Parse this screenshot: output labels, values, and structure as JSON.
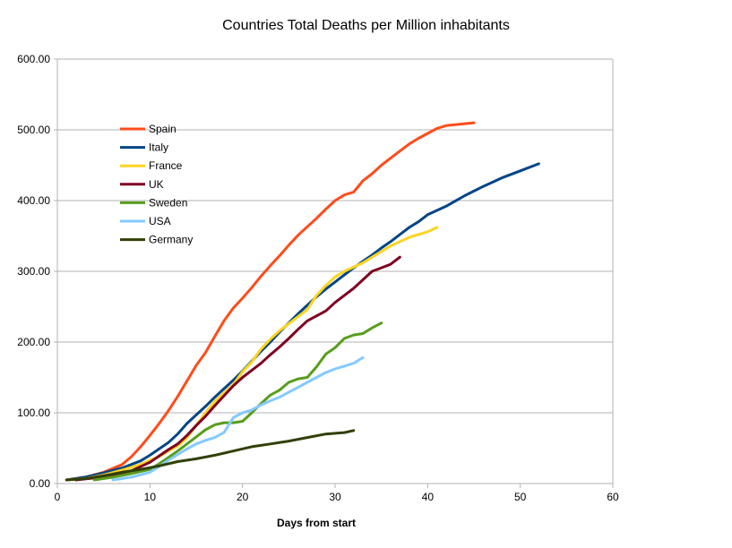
{
  "chart_data": {
    "type": "line",
    "title": "Countries Total Deaths per Million inhabitants",
    "xlabel": "Days from start",
    "ylabel": "",
    "xlim": [
      0,
      60
    ],
    "ylim": [
      0,
      600
    ],
    "x_ticks": [
      "0",
      "10",
      "20",
      "30",
      "40",
      "50",
      "60"
    ],
    "y_ticks": [
      "0.00",
      "100.00",
      "200.00",
      "300.00",
      "400.00",
      "500.00",
      "600.00"
    ],
    "grid": "horizontal",
    "legend_position": "upper-left inside",
    "series": [
      {
        "name": "Spain",
        "color": "#ff4c1a",
        "points": [
          [
            1,
            5
          ],
          [
            3,
            9
          ],
          [
            5,
            16
          ],
          [
            7,
            27
          ],
          [
            8,
            38
          ],
          [
            9,
            52
          ],
          [
            10,
            68
          ],
          [
            11,
            85
          ],
          [
            12,
            103
          ],
          [
            13,
            123
          ],
          [
            14,
            145
          ],
          [
            15,
            167
          ],
          [
            16,
            185
          ],
          [
            17,
            208
          ],
          [
            18,
            230
          ],
          [
            19,
            248
          ],
          [
            20,
            262
          ],
          [
            21,
            277
          ],
          [
            22,
            293
          ],
          [
            23,
            308
          ],
          [
            24,
            322
          ],
          [
            25,
            337
          ],
          [
            26,
            351
          ],
          [
            27,
            363
          ],
          [
            28,
            375
          ],
          [
            29,
            388
          ],
          [
            30,
            400
          ],
          [
            31,
            408
          ],
          [
            32,
            412
          ],
          [
            33,
            428
          ],
          [
            34,
            438
          ],
          [
            35,
            450
          ],
          [
            36,
            460
          ],
          [
            37,
            470
          ],
          [
            38,
            480
          ],
          [
            39,
            488
          ],
          [
            40,
            495
          ],
          [
            41,
            502
          ],
          [
            42,
            506
          ],
          [
            45,
            510
          ]
        ]
      },
      {
        "name": "Italy",
        "color": "#004586",
        "points": [
          [
            1,
            5
          ],
          [
            3,
            9
          ],
          [
            5,
            15
          ],
          [
            7,
            22
          ],
          [
            9,
            32
          ],
          [
            10,
            40
          ],
          [
            11,
            49
          ],
          [
            12,
            58
          ],
          [
            13,
            70
          ],
          [
            14,
            85
          ],
          [
            15,
            97
          ],
          [
            16,
            109
          ],
          [
            17,
            122
          ],
          [
            18,
            134
          ],
          [
            19,
            146
          ],
          [
            20,
            159
          ],
          [
            21,
            173
          ],
          [
            22,
            187
          ],
          [
            23,
            200
          ],
          [
            24,
            214
          ],
          [
            25,
            227
          ],
          [
            26,
            240
          ],
          [
            27,
            252
          ],
          [
            28,
            264
          ],
          [
            29,
            275
          ],
          [
            30,
            285
          ],
          [
            31,
            295
          ],
          [
            32,
            305
          ],
          [
            33,
            314
          ],
          [
            34,
            323
          ],
          [
            35,
            333
          ],
          [
            36,
            342
          ],
          [
            37,
            352
          ],
          [
            38,
            362
          ],
          [
            39,
            370
          ],
          [
            40,
            380
          ],
          [
            42,
            392
          ],
          [
            44,
            407
          ],
          [
            46,
            420
          ],
          [
            48,
            432
          ],
          [
            50,
            442
          ],
          [
            52,
            452
          ]
        ]
      },
      {
        "name": "France",
        "color": "#ffd320",
        "points": [
          [
            1,
            5
          ],
          [
            3,
            7
          ],
          [
            5,
            12
          ],
          [
            7,
            19
          ],
          [
            9,
            27
          ],
          [
            10,
            33
          ],
          [
            11,
            38
          ],
          [
            12,
            46
          ],
          [
            13,
            53
          ],
          [
            14,
            65
          ],
          [
            15,
            82
          ],
          [
            16,
            100
          ],
          [
            17,
            116
          ],
          [
            18,
            128
          ],
          [
            19,
            140
          ],
          [
            20,
            158
          ],
          [
            21,
            172
          ],
          [
            22,
            190
          ],
          [
            23,
            204
          ],
          [
            24,
            216
          ],
          [
            25,
            226
          ],
          [
            26,
            236
          ],
          [
            27,
            246
          ],
          [
            28,
            266
          ],
          [
            29,
            280
          ],
          [
            30,
            292
          ],
          [
            31,
            300
          ],
          [
            32,
            306
          ],
          [
            33,
            312
          ],
          [
            34,
            320
          ],
          [
            35,
            328
          ],
          [
            36,
            336
          ],
          [
            37,
            342
          ],
          [
            38,
            348
          ],
          [
            39,
            352
          ],
          [
            40,
            356
          ],
          [
            41,
            362
          ]
        ]
      },
      {
        "name": "UK",
        "color": "#7e0021",
        "points": [
          [
            2,
            5
          ],
          [
            4,
            8
          ],
          [
            6,
            12
          ],
          [
            8,
            18
          ],
          [
            10,
            30
          ],
          [
            12,
            48
          ],
          [
            13,
            56
          ],
          [
            14,
            68
          ],
          [
            15,
            82
          ],
          [
            16,
            95
          ],
          [
            17,
            110
          ],
          [
            18,
            124
          ],
          [
            19,
            138
          ],
          [
            20,
            150
          ],
          [
            21,
            160
          ],
          [
            22,
            170
          ],
          [
            23,
            182
          ],
          [
            24,
            193
          ],
          [
            25,
            205
          ],
          [
            26,
            218
          ],
          [
            27,
            230
          ],
          [
            28,
            237
          ],
          [
            29,
            244
          ],
          [
            30,
            256
          ],
          [
            31,
            266
          ],
          [
            32,
            276
          ],
          [
            33,
            288
          ],
          [
            34,
            300
          ],
          [
            35,
            305
          ],
          [
            36,
            310
          ],
          [
            37,
            320
          ]
        ]
      },
      {
        "name": "Sweden",
        "color": "#579d1c",
        "points": [
          [
            4,
            5
          ],
          [
            6,
            9
          ],
          [
            8,
            14
          ],
          [
            10,
            20
          ],
          [
            11,
            28
          ],
          [
            12,
            37
          ],
          [
            13,
            46
          ],
          [
            14,
            56
          ],
          [
            15,
            66
          ],
          [
            16,
            76
          ],
          [
            17,
            83
          ],
          [
            18,
            86
          ],
          [
            19,
            86
          ],
          [
            20,
            88
          ],
          [
            21,
            100
          ],
          [
            22,
            113
          ],
          [
            23,
            125
          ],
          [
            24,
            132
          ],
          [
            25,
            143
          ],
          [
            26,
            148
          ],
          [
            27,
            150
          ],
          [
            28,
            165
          ],
          [
            29,
            183
          ],
          [
            30,
            192
          ],
          [
            31,
            205
          ],
          [
            32,
            210
          ],
          [
            33,
            212
          ],
          [
            34,
            220
          ],
          [
            35,
            227
          ]
        ]
      },
      {
        "name": "USA",
        "color": "#83caff",
        "points": [
          [
            6,
            5
          ],
          [
            8,
            9
          ],
          [
            10,
            16
          ],
          [
            11,
            24
          ],
          [
            12,
            33
          ],
          [
            13,
            41
          ],
          [
            14,
            49
          ],
          [
            15,
            56
          ],
          [
            16,
            61
          ],
          [
            17,
            65
          ],
          [
            18,
            72
          ],
          [
            19,
            93
          ],
          [
            20,
            100
          ],
          [
            21,
            104
          ],
          [
            22,
            111
          ],
          [
            23,
            117
          ],
          [
            24,
            122
          ],
          [
            25,
            129
          ],
          [
            26,
            136
          ],
          [
            27,
            143
          ],
          [
            28,
            150
          ],
          [
            29,
            157
          ],
          [
            30,
            162
          ],
          [
            31,
            166
          ],
          [
            32,
            170
          ],
          [
            33,
            178
          ]
        ]
      },
      {
        "name": "Germany",
        "color": "#314004",
        "points": [
          [
            1,
            5
          ],
          [
            3,
            7
          ],
          [
            5,
            11
          ],
          [
            7,
            16
          ],
          [
            9,
            20
          ],
          [
            11,
            25
          ],
          [
            13,
            31
          ],
          [
            15,
            35
          ],
          [
            17,
            40
          ],
          [
            19,
            46
          ],
          [
            21,
            52
          ],
          [
            23,
            56
          ],
          [
            25,
            60
          ],
          [
            27,
            65
          ],
          [
            29,
            70
          ],
          [
            31,
            72
          ],
          [
            32,
            75
          ]
        ]
      }
    ]
  }
}
